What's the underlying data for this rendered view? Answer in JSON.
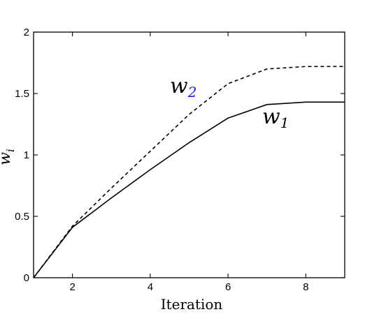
{
  "chart_data": {
    "type": "line",
    "xlabel": "Iteration",
    "ylabel": "w_i",
    "ylabel_base": "w",
    "ylabel_sub": "i",
    "xlim": [
      1,
      9
    ],
    "ylim": [
      0,
      2
    ],
    "xticks": [
      2,
      4,
      6,
      8
    ],
    "yticks": [
      0,
      0.5,
      1,
      1.5,
      2
    ],
    "ytick_labels": [
      "0",
      "0.5",
      "1",
      "1.5",
      "2"
    ],
    "grid": false,
    "series": [
      {
        "name": "w_1",
        "label_base": "w",
        "label_sub": "1",
        "style": "solid",
        "color": "#000000",
        "sub_color": "#000000",
        "x": [
          1,
          2,
          3,
          4,
          5,
          6,
          7,
          8,
          9
        ],
        "y": [
          0,
          0.41,
          0.65,
          0.88,
          1.1,
          1.3,
          1.41,
          1.43,
          1.43
        ]
      },
      {
        "name": "w_2",
        "label_base": "w",
        "label_sub": "2",
        "style": "dashed",
        "color": "#000000",
        "sub_color": "#1a1aff",
        "x": [
          1,
          2,
          3,
          4,
          5,
          6,
          7,
          8,
          9
        ],
        "y": [
          0,
          0.42,
          0.73,
          1.03,
          1.33,
          1.58,
          1.7,
          1.72,
          1.72
        ]
      }
    ]
  }
}
